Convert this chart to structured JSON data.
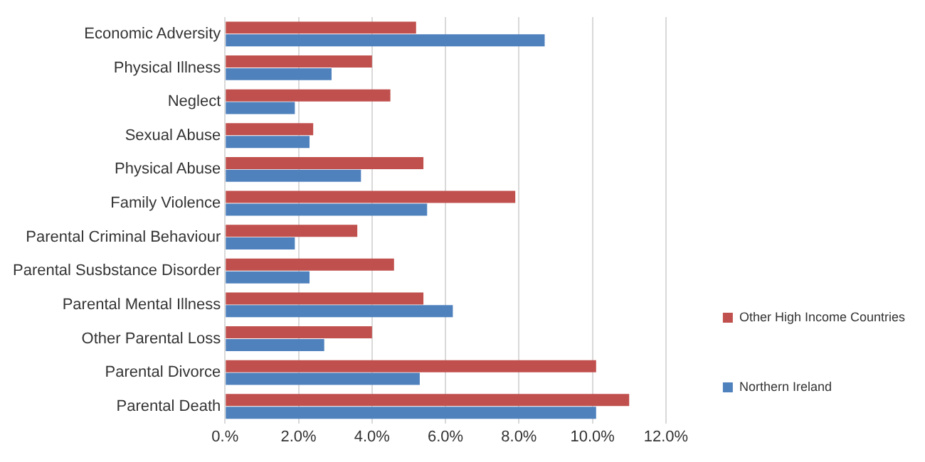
{
  "chart_data": {
    "type": "bar",
    "orientation": "horizontal",
    "categories": [
      "Economic Adversity",
      "Physical Illness",
      "Neglect",
      "Sexual Abuse",
      "Physical Abuse",
      "Family Violence",
      "Parental Criminal Behaviour",
      "Parental Susbstance Disorder",
      "Parental Mental Illness",
      "Other Parental Loss",
      "Parental Divorce",
      "Parental Death"
    ],
    "series": [
      {
        "name": "Other High Income Countries",
        "color": "#c0504d",
        "values": [
          5.2,
          4.0,
          4.5,
          2.4,
          5.4,
          7.9,
          3.6,
          4.6,
          5.4,
          4.0,
          10.1,
          11.0
        ]
      },
      {
        "name": "Northern Ireland",
        "color": "#4f81bd",
        "values": [
          8.7,
          2.9,
          1.9,
          2.3,
          3.7,
          5.5,
          1.9,
          2.3,
          6.2,
          2.7,
          5.3,
          10.1
        ]
      }
    ],
    "xlim": [
      0,
      12
    ],
    "xticks": [
      {
        "value": 0,
        "label": "0.%"
      },
      {
        "value": 2,
        "label": "2.0%"
      },
      {
        "value": 4,
        "label": "4.0%"
      },
      {
        "value": 6,
        "label": "6.0%"
      },
      {
        "value": 8,
        "label": "8.0%"
      },
      {
        "value": 10,
        "label": "10.0%"
      },
      {
        "value": 12,
        "label": "12.0%"
      }
    ],
    "grid": "x",
    "legend": "right"
  }
}
